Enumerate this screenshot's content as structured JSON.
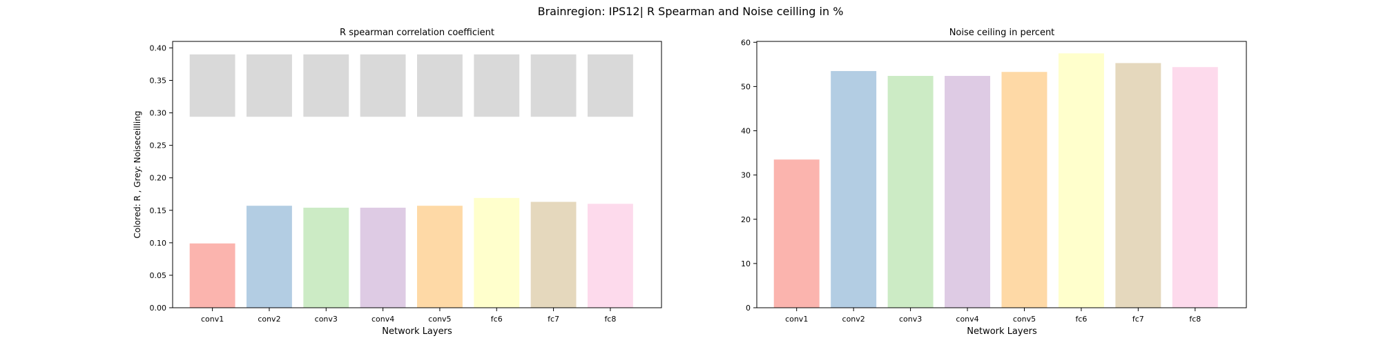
{
  "figure_title": "Brainregion: IPS12| R Spearman and Noise ceilling in %",
  "chart_data": [
    {
      "type": "bar",
      "title": "R spearman correlation coefficient",
      "xlabel": "Network Layers",
      "ylabel": "Colored: R , Grey: Noiseceilling",
      "categories": [
        "conv1",
        "conv2",
        "conv3",
        "conv4",
        "conv5",
        "fc6",
        "fc7",
        "fc8"
      ],
      "ylim": [
        0,
        0.41
      ],
      "yticks": [
        "0.00",
        "0.05",
        "0.10",
        "0.15",
        "0.20",
        "0.25",
        "0.30",
        "0.35",
        "0.40"
      ],
      "series": [
        {
          "values": [
            0.099,
            0.157,
            0.154,
            0.154,
            0.157,
            0.169,
            0.163,
            0.16
          ],
          "colors": [
            "#fbb4ae",
            "#b3cde3",
            "#ccebc5",
            "#decbe4",
            "#fed9a6",
            "#ffffcc",
            "#e5d8bd",
            "#fddaec"
          ]
        },
        {
          "floating": true,
          "bottom": [
            0.294,
            0.294,
            0.294,
            0.294,
            0.294,
            0.294,
            0.294,
            0.294
          ],
          "top": [
            0.39,
            0.39,
            0.39,
            0.39,
            0.39,
            0.39,
            0.39,
            0.39
          ],
          "color": "#d9d9d9"
        }
      ],
      "grid": false
    },
    {
      "type": "bar",
      "title": "Noise ceiling in percent",
      "xlabel": "Network Layers",
      "ylabel": "",
      "categories": [
        "conv1",
        "conv2",
        "conv3",
        "conv4",
        "conv5",
        "fc6",
        "fc7",
        "fc8"
      ],
      "ylim": [
        0,
        60.2
      ],
      "yticks": [
        "0",
        "10",
        "20",
        "30",
        "40",
        "50",
        "60"
      ],
      "series": [
        {
          "values": [
            33.5,
            53.5,
            52.4,
            52.4,
            53.3,
            57.5,
            55.3,
            54.4
          ],
          "colors": [
            "#fbb4ae",
            "#b3cde3",
            "#ccebc5",
            "#decbe4",
            "#fed9a6",
            "#ffffcc",
            "#e5d8bd",
            "#fddaec"
          ]
        }
      ],
      "grid": false
    }
  ]
}
